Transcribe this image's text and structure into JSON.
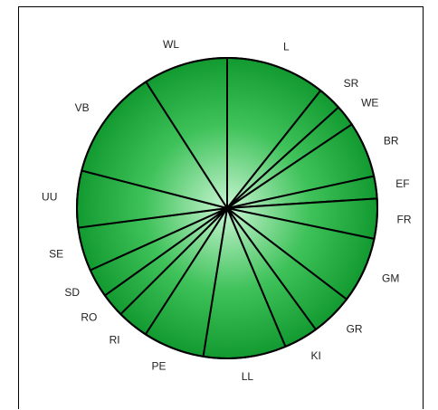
{
  "chart_data": {
    "type": "pie",
    "title": "",
    "categories": [
      "L",
      "SR",
      "WE",
      "BR",
      "EF",
      "FR",
      "GM",
      "GR",
      "KI",
      "LL",
      "PE",
      "RI",
      "RO",
      "SD",
      "SE",
      "UU",
      "VB",
      "WL"
    ],
    "values": [
      10.7,
      2.6,
      2.3,
      6.0,
      2.4,
      4.3,
      7.1,
      4.6,
      3.7,
      8.9,
      6.6,
      3.4,
      2.6,
      3.1,
      4.7,
      6.1,
      11.9,
      9.1
    ],
    "colors": {
      "slice_center": "#c8f5d2",
      "slice_mid": "#3fc25a",
      "slice_edge": "#129a30",
      "divider": "#000000"
    },
    "start_angle_deg": 0,
    "direction": "clockwise",
    "legend": "none"
  }
}
